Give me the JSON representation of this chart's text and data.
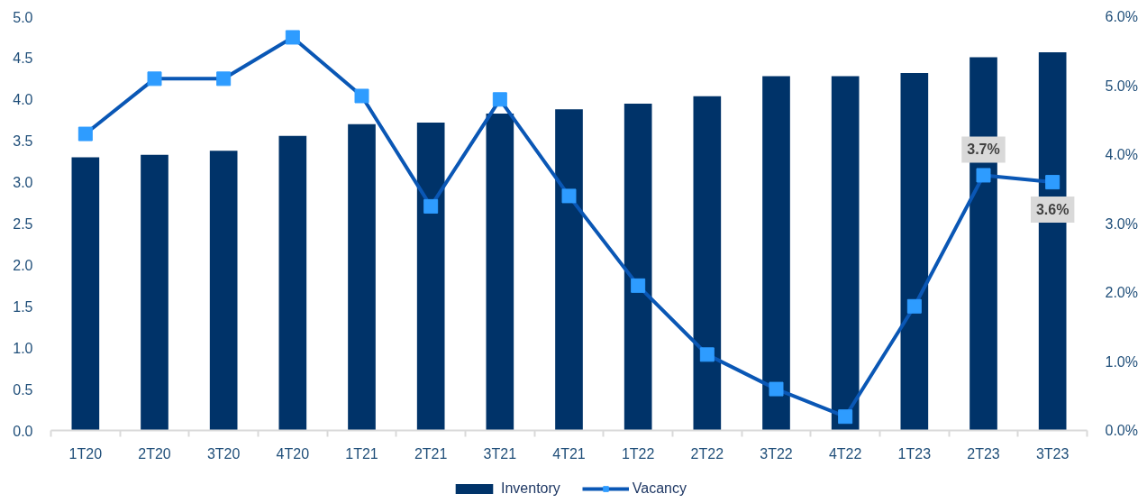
{
  "chart_data": {
    "type": "bar",
    "categories": [
      "1T20",
      "2T20",
      "3T20",
      "4T20",
      "1T21",
      "2T21",
      "3T21",
      "4T21",
      "1T22",
      "2T22",
      "3T22",
      "4T22",
      "1T23",
      "2T23",
      "3T23"
    ],
    "series": [
      {
        "name": "Inventory",
        "color": "#003369",
        "values": [
          3.3,
          3.33,
          3.38,
          3.56,
          3.7,
          3.72,
          3.83,
          3.88,
          3.95,
          4.04,
          4.28,
          4.28,
          4.32,
          4.51,
          4.57
        ]
      },
      {
        "name": "Vacancy",
        "type": "line",
        "axis": "y2",
        "marker": "square",
        "color": "#0a57b5",
        "values": [
          4.3,
          5.1,
          5.1,
          5.7,
          4.85,
          3.25,
          4.8,
          3.4,
          2.1,
          1.1,
          0.6,
          0.2,
          1.8,
          3.7,
          3.6
        ],
        "value_labels": [
          null,
          null,
          null,
          null,
          null,
          null,
          null,
          null,
          null,
          null,
          null,
          null,
          null,
          "3.7%",
          "3.6%"
        ]
      }
    ],
    "ylim": [
      0,
      5
    ],
    "yticks": [
      {
        "value": 0,
        "label": "0.0"
      },
      {
        "value": 0.5,
        "label": "0.5"
      },
      {
        "value": 1,
        "label": "1.0"
      },
      {
        "value": 1.5,
        "label": "1.5"
      },
      {
        "value": 2,
        "label": "2.0"
      },
      {
        "value": 2.5,
        "label": "2.5"
      },
      {
        "value": 3,
        "label": "3.0"
      },
      {
        "value": 3.5,
        "label": "3.5"
      },
      {
        "value": 4,
        "label": "4.0"
      },
      {
        "value": 4.5,
        "label": "4.5"
      },
      {
        "value": 5,
        "label": "5.0"
      }
    ],
    "y2lim": [
      0,
      6
    ],
    "y2ticks": [
      {
        "value": 0,
        "label": "0.0%"
      },
      {
        "value": 1,
        "label": "1.0%"
      },
      {
        "value": 2,
        "label": "2.0%"
      },
      {
        "value": 3,
        "label": "3.0%"
      },
      {
        "value": 4,
        "label": "4.0%"
      },
      {
        "value": 5,
        "label": "5.0%"
      },
      {
        "value": 6,
        "label": "6.0%"
      }
    ],
    "legend": "bottom"
  }
}
